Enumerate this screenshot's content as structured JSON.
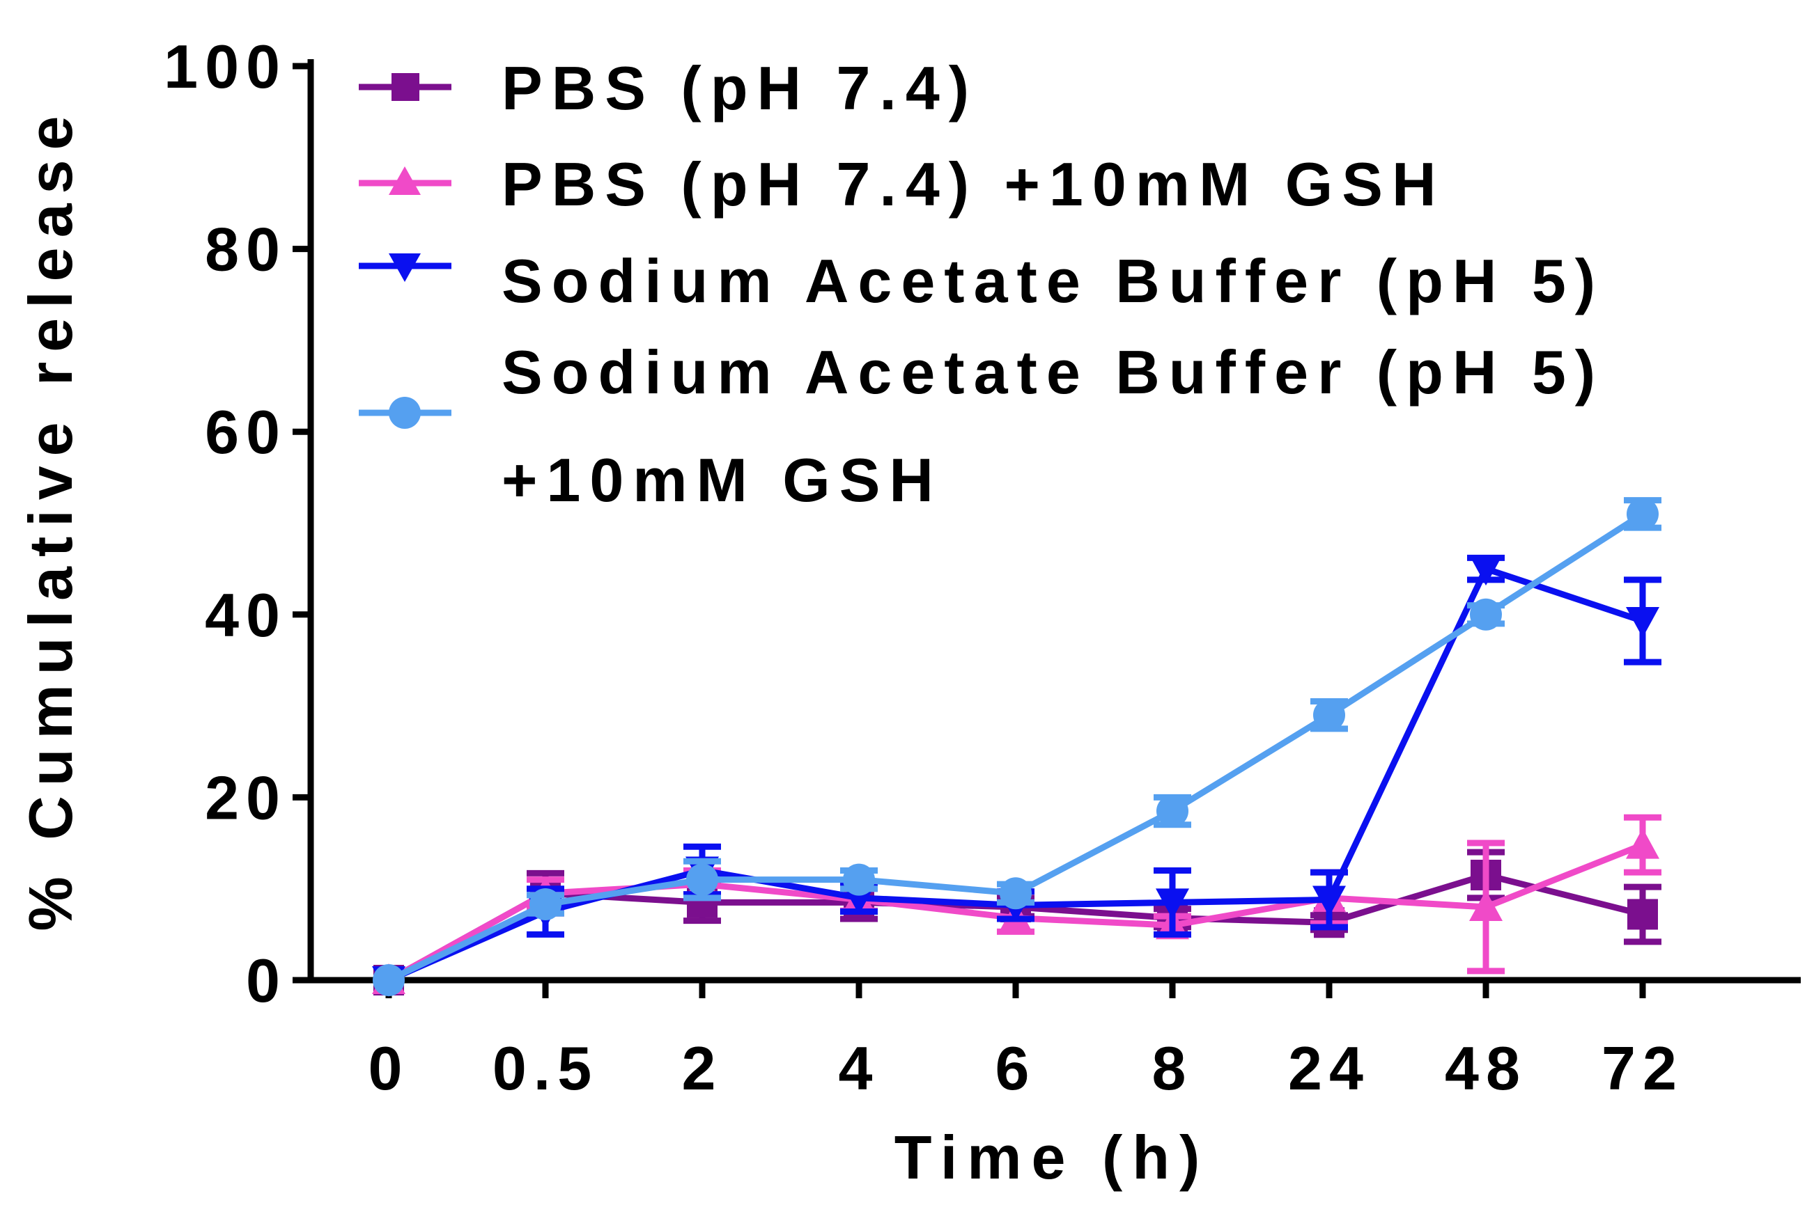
{
  "chart_data": {
    "type": "line",
    "title": "",
    "xlabel": "Time (h)",
    "ylabel": "% Cumulative release",
    "categories": [
      "0",
      "0.5",
      "2",
      "4",
      "6",
      "8",
      "24",
      "48",
      "72"
    ],
    "ylim": [
      0,
      100
    ],
    "yticks": [
      "0",
      "20",
      "40",
      "60",
      "80",
      "100"
    ],
    "legend_position": "top-left",
    "series": [
      {
        "name": "PBS (pH 7.4)",
        "color": "#7b0f8e",
        "marker": "square",
        "values": [
          0,
          9.5,
          8.5,
          8.5,
          8,
          6.8,
          6.3,
          11.5,
          7.2
        ],
        "errors": [
          0.3,
          2.2,
          2,
          1.8,
          1,
          1,
          0.8,
          2.5,
          3
        ]
      },
      {
        "name": "PBS (pH 7.4) +10mM GSH",
        "color": "#f04ac8",
        "marker": "triangle-up",
        "values": [
          0,
          9.5,
          10.5,
          8.8,
          6.8,
          6,
          9,
          8,
          14.8
        ],
        "errors": [
          0.3,
          1.5,
          1.5,
          1.2,
          1.5,
          1,
          2.8,
          7,
          3
        ]
      },
      {
        "name": "Sodium Acetate Buffer (pH 5)",
        "color": "#0a10f0",
        "marker": "triangle-down",
        "values": [
          0,
          7.5,
          12,
          9,
          8.2,
          8.5,
          8.8,
          45,
          39.3
        ],
        "errors": [
          0.3,
          2.5,
          2.6,
          1.5,
          1.5,
          3.5,
          3,
          1.2,
          4.5
        ]
      },
      {
        "name": "Sodium Acetate Buffer (pH 5)",
        "name_line2": "+10mM GSH",
        "color": "#55a0f0",
        "marker": "circle",
        "values": [
          0,
          8.3,
          11,
          11,
          9.5,
          18.5,
          29,
          40,
          51
        ],
        "errors": [
          0.3,
          1,
          2,
          1,
          1,
          1.5,
          1.5,
          1,
          1.5
        ]
      }
    ]
  }
}
